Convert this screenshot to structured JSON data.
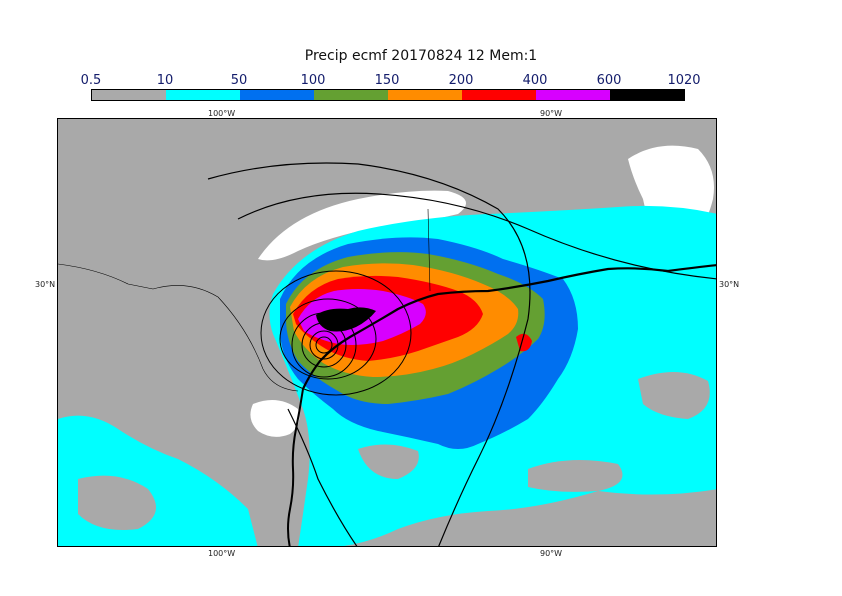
{
  "title": "Precip ecmf 20170824 12 Mem:1",
  "legend": {
    "thresholds": [
      "0.5",
      "10",
      "50",
      "100",
      "150",
      "200",
      "400",
      "600",
      "1020"
    ],
    "colors": [
      "#aaaaaa",
      "#00ffff",
      "#0070f0",
      "#64a032",
      "#ff8c00",
      "#ff0000",
      "#d700ff",
      "#000000"
    ]
  },
  "axes": {
    "lon_top": [
      "100°W",
      "90°W"
    ],
    "lon_bottom": [
      "100°W",
      "90°W"
    ],
    "lat_left": "30°N",
    "lat_right": "30°N"
  }
}
